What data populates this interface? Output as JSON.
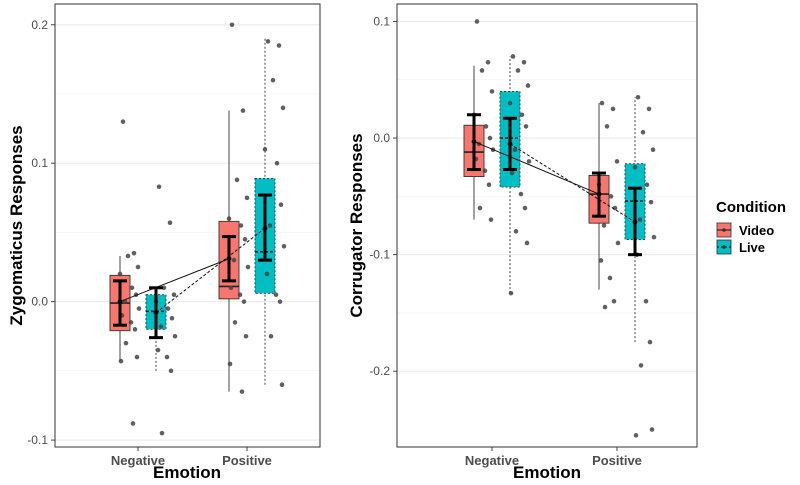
{
  "legend": {
    "title": "Condition",
    "items": [
      {
        "label": "Video",
        "color": "#F8766D",
        "line": "solid"
      },
      {
        "label": "Live",
        "color": "#00BFC4",
        "line": "dotted"
      }
    ]
  },
  "chart_data": [
    {
      "type": "box",
      "xlabel": "Emotion",
      "ylabel": "Zygomaticus Responses",
      "categories": [
        "Negative",
        "Positive"
      ],
      "ylim": [
        -0.105,
        0.215
      ],
      "yticks": [
        {
          "value": -0.1,
          "label": "-0.1"
        },
        {
          "value": 0.0,
          "label": "0.0"
        },
        {
          "value": 0.1,
          "label": "0.1"
        },
        {
          "value": 0.2,
          "label": "0.2"
        }
      ],
      "grid": true,
      "series": [
        {
          "name": "Video",
          "boxes": [
            {
              "q1": -0.021,
              "median": -0.001,
              "q3": 0.019,
              "whisker_low": -0.043,
              "whisker_high": 0.033,
              "mean": 0.0,
              "ci_low": -0.017,
              "ci_high": 0.015,
              "points": [
                0.13,
                0.035,
                0.033,
                0.025,
                0.02,
                0.01,
                0.005,
                0.0,
                -0.005,
                -0.01,
                -0.015,
                -0.02,
                -0.03,
                -0.04,
                -0.043,
                -0.088
              ]
            },
            {
              "q1": 0.002,
              "median": 0.011,
              "q3": 0.058,
              "whisker_low": -0.065,
              "whisker_high": 0.138,
              "mean": 0.031,
              "ci_low": 0.015,
              "ci_high": 0.047,
              "points": [
                0.2,
                0.138,
                0.088,
                0.075,
                0.06,
                0.055,
                0.045,
                0.03,
                0.025,
                0.01,
                0.005,
                0.0,
                -0.015,
                -0.025,
                -0.045,
                -0.065
              ]
            }
          ]
        },
        {
          "name": "Live",
          "boxes": [
            {
              "q1": -0.02,
              "median": -0.007,
              "q3": 0.005,
              "whisker_low": -0.05,
              "whisker_high": 0.008,
              "mean": -0.008,
              "ci_low": -0.026,
              "ci_high": 0.01,
              "points": [
                0.083,
                0.057,
                0.01,
                0.005,
                0.0,
                -0.005,
                -0.012,
                -0.018,
                -0.025,
                -0.035,
                -0.04,
                -0.05,
                -0.095
              ]
            },
            {
              "q1": 0.006,
              "median": 0.036,
              "q3": 0.089,
              "whisker_low": -0.06,
              "whisker_high": 0.19,
              "mean": 0.053,
              "ci_low": 0.03,
              "ci_high": 0.077,
              "points": [
                0.188,
                0.185,
                0.16,
                0.14,
                0.11,
                0.1,
                0.07,
                0.055,
                0.04,
                0.02,
                0.005,
                0.0,
                -0.025,
                -0.06
              ]
            }
          ]
        }
      ]
    },
    {
      "type": "box",
      "xlabel": "Emotion",
      "ylabel": "Corrugator Responses",
      "categories": [
        "Negative",
        "Positive"
      ],
      "ylim": [
        -0.265,
        0.115
      ],
      "yticks": [
        {
          "value": -0.2,
          "label": "-0.2"
        },
        {
          "value": -0.1,
          "label": "-0.1"
        },
        {
          "value": 0.0,
          "label": "0.0"
        },
        {
          "value": 0.1,
          "label": "0.1"
        }
      ],
      "grid": true,
      "series": [
        {
          "name": "Video",
          "boxes": [
            {
              "q1": -0.033,
              "median": -0.012,
              "q3": 0.011,
              "whisker_low": -0.07,
              "whisker_high": 0.062,
              "mean": -0.003,
              "ci_low": -0.027,
              "ci_high": 0.02,
              "points": [
                0.1,
                0.065,
                0.058,
                0.04,
                0.02,
                0.01,
                0.0,
                -0.005,
                -0.01,
                -0.018,
                -0.028,
                -0.04,
                -0.06,
                -0.07
              ]
            },
            {
              "q1": -0.073,
              "median": -0.048,
              "q3": -0.032,
              "whisker_low": -0.13,
              "whisker_high": 0.03,
              "mean": -0.048,
              "ci_low": -0.067,
              "ci_high": -0.03,
              "points": [
                0.03,
                0.025,
                0.01,
                -0.02,
                -0.04,
                -0.05,
                -0.06,
                -0.075,
                -0.09,
                -0.105,
                -0.12,
                -0.14,
                -0.145
              ]
            }
          ]
        },
        {
          "name": "Live",
          "boxes": [
            {
              "q1": -0.042,
              "median": 0.0,
              "q3": 0.04,
              "whisker_low": -0.133,
              "whisker_high": 0.07,
              "mean": -0.005,
              "ci_low": -0.027,
              "ci_high": 0.017,
              "points": [
                0.07,
                0.065,
                0.058,
                0.045,
                0.03,
                0.02,
                0.01,
                -0.01,
                -0.02,
                -0.03,
                -0.048,
                -0.06,
                -0.08,
                -0.09,
                -0.133
              ]
            },
            {
              "q1": -0.087,
              "median": -0.054,
              "q3": -0.022,
              "whisker_low": -0.175,
              "whisker_high": 0.035,
              "mean": -0.072,
              "ci_low": -0.1,
              "ci_high": -0.043,
              "points": [
                0.035,
                0.025,
                0.005,
                -0.01,
                -0.025,
                -0.04,
                -0.055,
                -0.07,
                -0.085,
                -0.1,
                -0.14,
                -0.175,
                -0.195,
                -0.25,
                -0.255
              ]
            }
          ]
        }
      ]
    }
  ]
}
